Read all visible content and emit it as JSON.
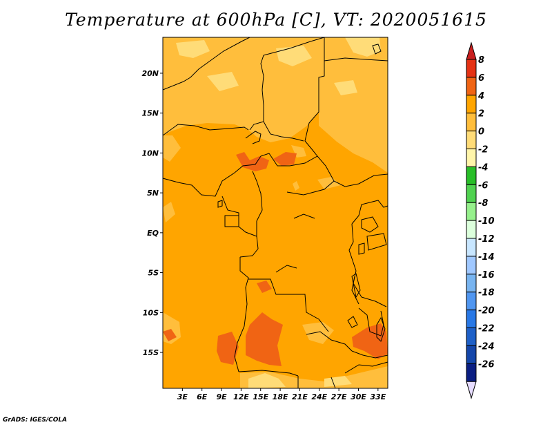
{
  "title": "Temperature at 600hPa [C], VT: 2020051615",
  "credit": "GrADS: IGES/COLA",
  "map": {
    "lon_range": [
      0,
      34.5
    ],
    "lat_range": [
      -19.5,
      24.5
    ],
    "lat_ticks": [
      "20N",
      "15N",
      "10N",
      "5N",
      "EQ",
      "5S",
      "10S",
      "15S"
    ],
    "lon_ticks": [
      "3E",
      "6E",
      "9E",
      "12E",
      "15E",
      "18E",
      "21E",
      "24E",
      "27E",
      "30E",
      "33E"
    ],
    "base_color": "#ffa500"
  },
  "colorbar": {
    "labels": [
      "8",
      "6",
      "4",
      "2",
      "0",
      "-2",
      "-4",
      "-6",
      "-8",
      "-10",
      "-12",
      "-14",
      "-16",
      "-18",
      "-20",
      "-22",
      "-24",
      "-26"
    ],
    "colors": [
      "#e53214",
      "#f06414",
      "#ffa500",
      "#ffbe3c",
      "#ffdc78",
      "#fff5aa",
      "#28be28",
      "#50d250",
      "#96f08c",
      "#dcffdc",
      "#c8e6ff",
      "#a0c8ff",
      "#78b4f0",
      "#5096f0",
      "#2878e6",
      "#1e60c8",
      "#1446aa",
      "#0a1e82"
    ],
    "top_arrow_color": "#c81e1e",
    "bottom_arrow_color": "#e6dcff"
  }
}
